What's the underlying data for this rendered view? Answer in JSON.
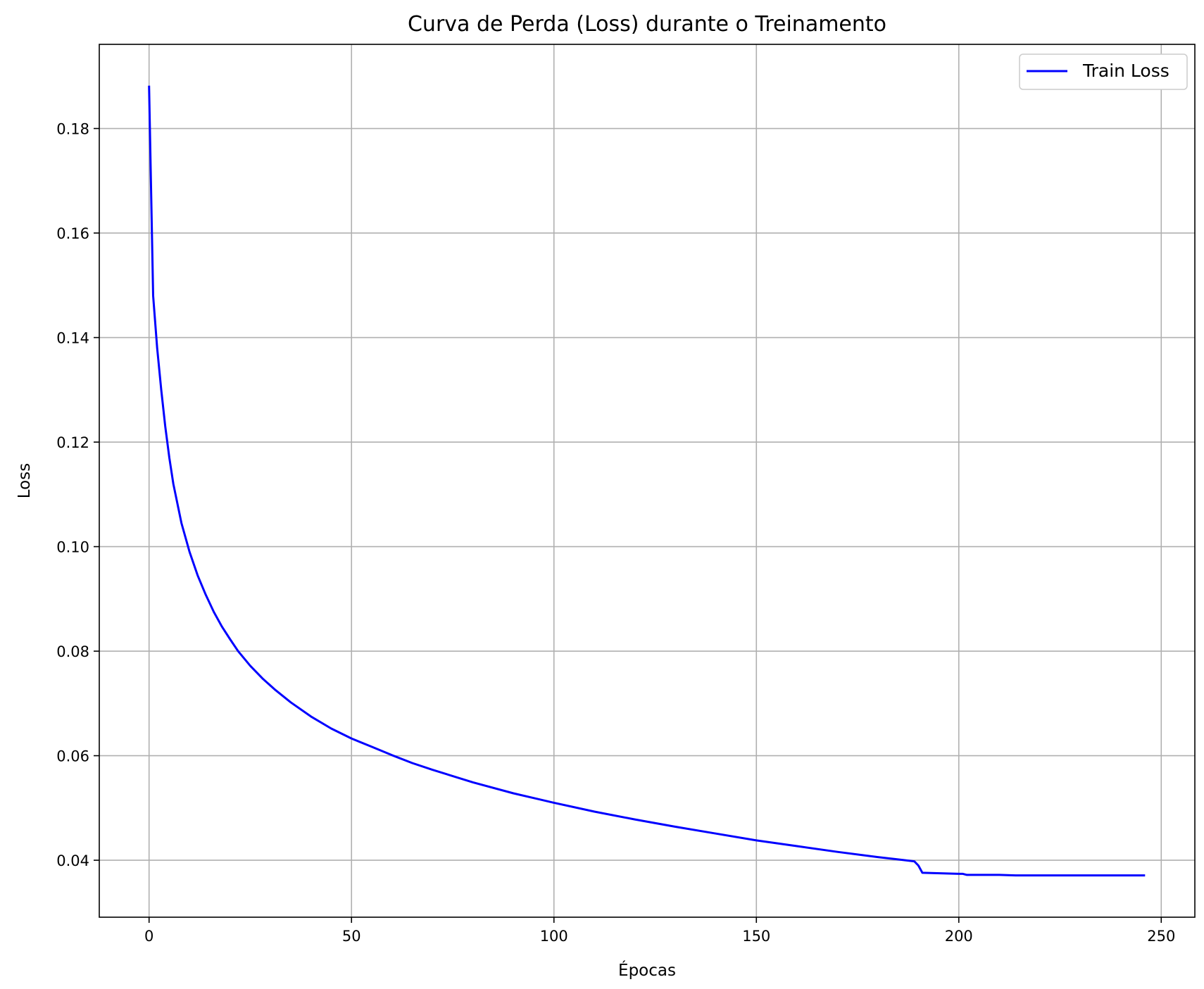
{
  "chart_data": {
    "type": "line",
    "title": "Curva de Perda (Loss) durante o Treinamento",
    "xlabel": "Épocas",
    "ylabel": "Loss",
    "xlim": [
      -12.3,
      258.3
    ],
    "ylim": [
      0.0291,
      0.1961
    ],
    "xticks": [
      0,
      50,
      100,
      150,
      200,
      250
    ],
    "xtick_labels": [
      "0",
      "50",
      "100",
      "150",
      "200",
      "250"
    ],
    "yticks": [
      0.04,
      0.06,
      0.08,
      0.1,
      0.12,
      0.14,
      0.16,
      0.18
    ],
    "ytick_labels": [
      "0.04",
      "0.06",
      "0.08",
      "0.10",
      "0.12",
      "0.14",
      "0.16",
      "0.18"
    ],
    "grid": true,
    "legend": {
      "placement": "top-right",
      "entries": [
        "Train Loss"
      ]
    },
    "series": [
      {
        "name": "Train Loss",
        "color": "#0000ff",
        "x": [
          0,
          1,
          2,
          3,
          4,
          5,
          6,
          8,
          10,
          12,
          14,
          16,
          18,
          20,
          22,
          25,
          28,
          31,
          35,
          40,
          45,
          50,
          55,
          60,
          65,
          70,
          80,
          90,
          100,
          110,
          120,
          130,
          140,
          150,
          160,
          170,
          180,
          189,
          190,
          191,
          200,
          201,
          202,
          210,
          214,
          220,
          230,
          240,
          246
        ],
        "values": [
          0.1882,
          0.148,
          0.138,
          0.13,
          0.123,
          0.117,
          0.112,
          0.1045,
          0.099,
          0.0945,
          0.0908,
          0.0875,
          0.0847,
          0.0823,
          0.08,
          0.0772,
          0.0748,
          0.0727,
          0.0702,
          0.0675,
          0.0652,
          0.0633,
          0.0617,
          0.0601,
          0.0586,
          0.0573,
          0.0549,
          0.0528,
          0.051,
          0.0493,
          0.0478,
          0.0464,
          0.0451,
          0.0438,
          0.0427,
          0.0416,
          0.0406,
          0.0398,
          0.039,
          0.0376,
          0.0374,
          0.0374,
          0.0372,
          0.0372,
          0.0371,
          0.0371,
          0.0371,
          0.0371,
          0.0371
        ]
      }
    ]
  }
}
